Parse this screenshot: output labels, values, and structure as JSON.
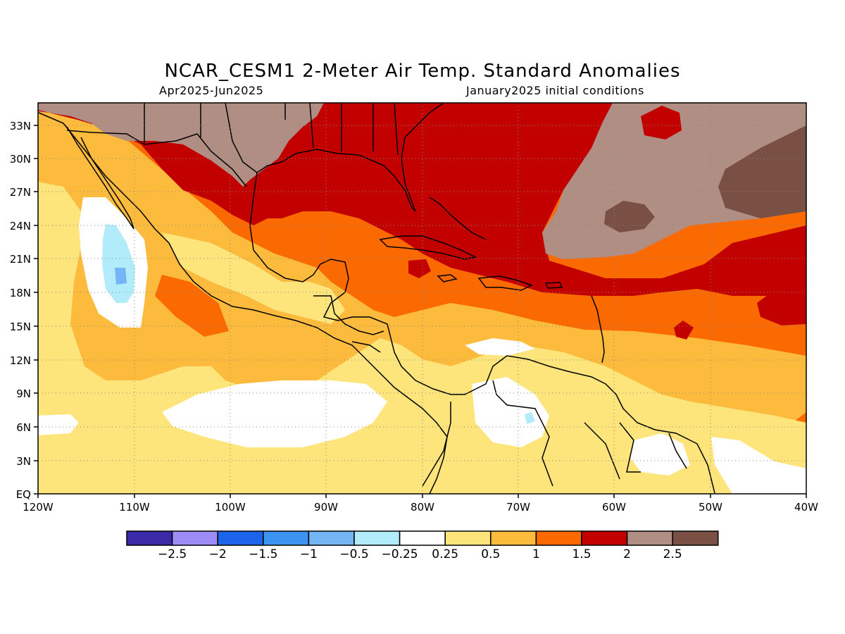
{
  "title": "NCAR_CESM1 2-Meter Air Temp. Standard Anomalies",
  "subtitle_left": "Apr2025-Jun2025",
  "subtitle_right": "January2025 initial conditions",
  "lat_labels": [
    "33N",
    "30N",
    "27N",
    "24N",
    "21N",
    "18N",
    "15N",
    "12N",
    "9N",
    "6N",
    "3N",
    "EQ"
  ],
  "lon_labels": [
    "120W",
    "110W",
    "100W",
    "90W",
    "80W",
    "70W",
    "60W",
    "50W",
    "40W"
  ],
  "colorbar": {
    "colors": [
      "#3b2aa8",
      "#9d8cf5",
      "#1c64ea",
      "#3d93f2",
      "#74b6f5",
      "#b2ecfa",
      "#ffffff",
      "#fde57c",
      "#fdbb3d",
      "#fb6a00",
      "#c30000",
      "#b18e83",
      "#7a4f44"
    ],
    "labels": [
      "-2.5",
      "-2",
      "-1.5",
      "-1",
      "-0.5",
      "-0.25",
      "0.25",
      "0.5",
      "1",
      "1.5",
      "2",
      "2.5"
    ]
  }
}
